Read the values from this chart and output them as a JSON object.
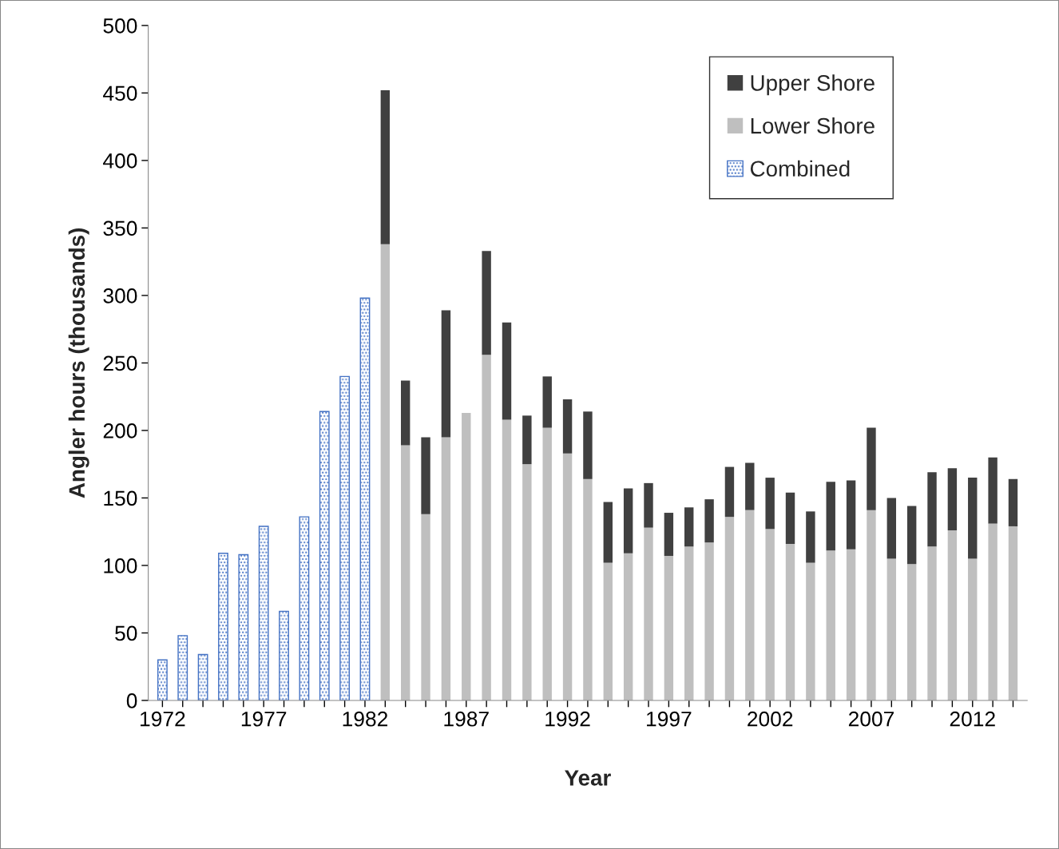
{
  "chart_data": {
    "type": "bar",
    "stacked": true,
    "xlabel": "Year",
    "ylabel": "Angler hours (thousands)",
    "categories": [
      "1972",
      null,
      null,
      null,
      null,
      "1977",
      null,
      null,
      null,
      null,
      "1982",
      null,
      null,
      null,
      null,
      "1987",
      null,
      null,
      null,
      null,
      "1992",
      null,
      null,
      null,
      null,
      "1997",
      null,
      null,
      null,
      null,
      "2002",
      null,
      null,
      null,
      null,
      "2007",
      null,
      null,
      null,
      null,
      "2012",
      null,
      null
    ],
    "series": [
      {
        "name": "Combined",
        "color": "#4472c4",
        "values": [
          30,
          48,
          34,
          109,
          108,
          129,
          66,
          136,
          214,
          240,
          298,
          null,
          null,
          null,
          null,
          null,
          null,
          null,
          null,
          null,
          null,
          null,
          null,
          null,
          null,
          null,
          null,
          null,
          null,
          null,
          null,
          null,
          null,
          null,
          null,
          null,
          null,
          null,
          null,
          null,
          null,
          null,
          null
        ]
      },
      {
        "name": "Lower Shore",
        "color": "#bfbfbf",
        "values": [
          null,
          null,
          null,
          null,
          null,
          null,
          null,
          null,
          null,
          null,
          null,
          338,
          189,
          138,
          195,
          213,
          256,
          208,
          175,
          202,
          183,
          164,
          102,
          109,
          128,
          107,
          114,
          117,
          136,
          141,
          127,
          116,
          102,
          111,
          112,
          141,
          105,
          101,
          114,
          126,
          105,
          131,
          129
        ]
      },
      {
        "name": "Upper Shore",
        "color": "#404040",
        "values": [
          null,
          null,
          null,
          null,
          null,
          null,
          null,
          null,
          null,
          null,
          null,
          114,
          48,
          57,
          94,
          null,
          77,
          72,
          36,
          38,
          40,
          50,
          45,
          48,
          33,
          32,
          29,
          32,
          37,
          35,
          38,
          38,
          38,
          51,
          51,
          61,
          45,
          43,
          55,
          46,
          60,
          49,
          35
        ]
      }
    ],
    "ylim": [
      0,
      500
    ],
    "yticks": [
      0,
      50,
      100,
      150,
      200,
      250,
      300,
      350,
      400,
      450,
      500
    ],
    "grid": false,
    "legend": "top right"
  }
}
